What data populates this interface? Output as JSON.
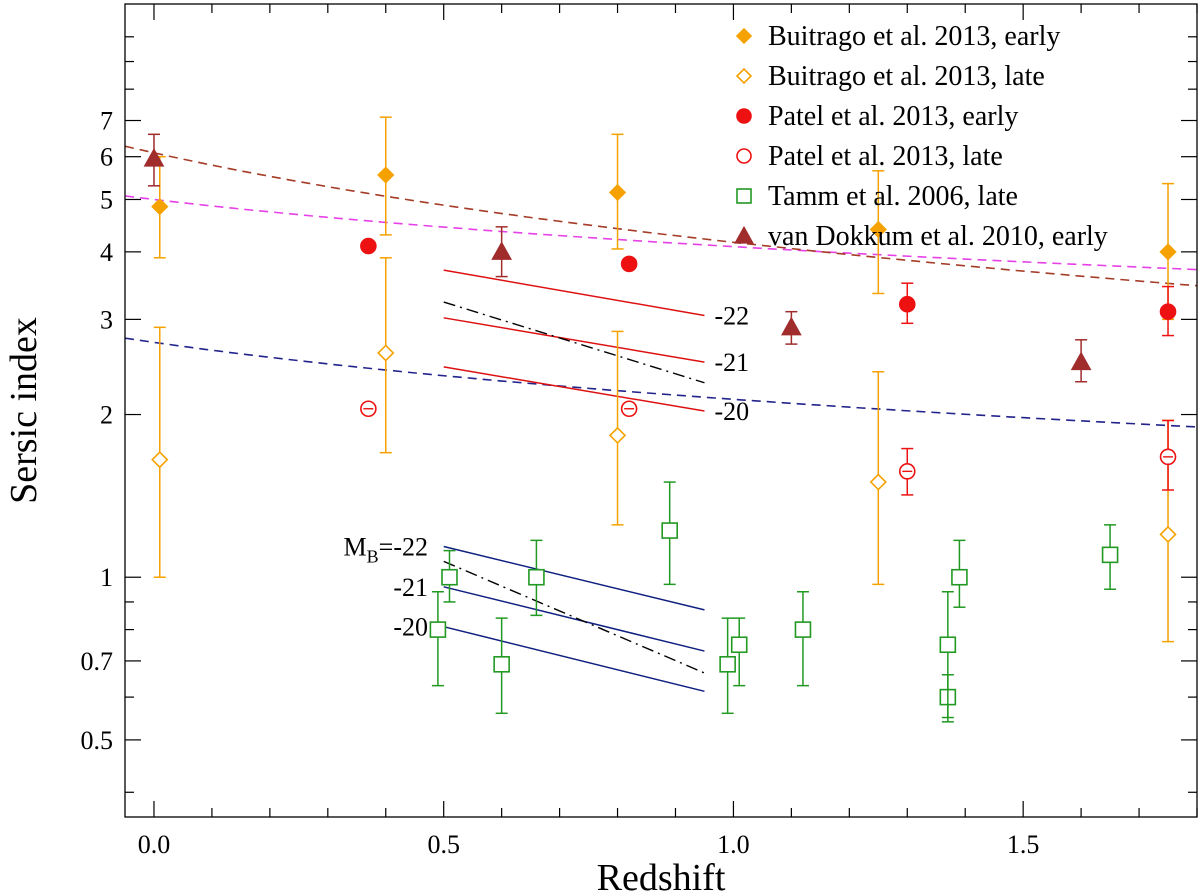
{
  "chart_data": {
    "type": "scatter",
    "title": "",
    "xlabel": "Redshift",
    "ylabel": "Sersic index",
    "xlim": [
      -0.05,
      1.8
    ],
    "ylim": [
      0.36,
      11.5
    ],
    "yscale": "log",
    "xticks": [
      {
        "v": 0.0,
        "label": "0.0"
      },
      {
        "v": 0.5,
        "label": "0.5"
      },
      {
        "v": 1.0,
        "label": "1.0"
      },
      {
        "v": 1.5,
        "label": "1.5"
      }
    ],
    "yticks": [
      {
        "v": 0.5,
        "label": "0.5"
      },
      {
        "v": 0.7,
        "label": "0.7"
      },
      {
        "v": 1,
        "label": "1"
      },
      {
        "v": 2,
        "label": "2"
      },
      {
        "v": 3,
        "label": "3"
      },
      {
        "v": 4,
        "label": "4"
      },
      {
        "v": 5,
        "label": "5"
      },
      {
        "v": 6,
        "label": "6"
      },
      {
        "v": 7,
        "label": "7"
      }
    ],
    "legend_position": "top-right",
    "series": [
      {
        "name": "Buitrago et al. 2013, early",
        "marker": "diamond",
        "filled": true,
        "color": "#f5a200",
        "points": [
          [
            0.01,
            4.85,
            3.9,
            6.0
          ],
          [
            0.4,
            5.55,
            4.3,
            7.1
          ],
          [
            0.8,
            5.15,
            4.05,
            6.6
          ],
          [
            1.25,
            4.4,
            3.35,
            5.65
          ],
          [
            1.75,
            4.0,
            3.0,
            5.35
          ]
        ]
      },
      {
        "name": "Buitrago et al. 2013, late",
        "marker": "diamond",
        "filled": false,
        "color": "#f5a200",
        "points": [
          [
            0.01,
            1.65,
            1.0,
            2.9
          ],
          [
            0.4,
            2.6,
            1.7,
            3.9
          ],
          [
            0.8,
            1.83,
            1.25,
            2.85
          ],
          [
            1.25,
            1.5,
            0.97,
            2.4
          ],
          [
            1.75,
            1.2,
            0.76,
            1.95
          ]
        ]
      },
      {
        "name": "Patel et al. 2013, early",
        "marker": "circle",
        "filled": true,
        "color": "#ee1111",
        "points": [
          [
            0.37,
            4.1,
            null,
            null
          ],
          [
            0.82,
            3.8,
            null,
            null
          ],
          [
            1.3,
            3.2,
            2.95,
            3.5
          ],
          [
            1.75,
            3.1,
            2.8,
            3.45
          ]
        ]
      },
      {
        "name": "Patel et al. 2013, late",
        "marker": "circle",
        "filled": false,
        "color": "#ee1111",
        "points": [
          [
            0.37,
            2.05,
            null,
            null
          ],
          [
            0.82,
            2.05,
            null,
            null
          ],
          [
            1.3,
            1.57,
            1.42,
            1.73
          ],
          [
            1.75,
            1.67,
            1.45,
            1.95
          ]
        ]
      },
      {
        "name": "Tamm et al. 2006, late",
        "marker": "square",
        "filled": false,
        "color": "#229922",
        "points": [
          [
            0.49,
            0.8,
            0.63,
            0.94
          ],
          [
            0.51,
            1.0,
            0.9,
            1.12
          ],
          [
            0.6,
            0.69,
            0.56,
            0.84
          ],
          [
            0.66,
            1.0,
            0.85,
            1.17
          ],
          [
            0.89,
            1.22,
            0.97,
            1.5
          ],
          [
            0.99,
            0.69,
            0.56,
            0.84
          ],
          [
            1.01,
            0.75,
            0.63,
            0.84
          ],
          [
            1.12,
            0.8,
            0.63,
            0.94
          ],
          [
            1.37,
            0.6,
            0.54,
            0.66
          ],
          [
            1.37,
            0.75,
            0.55,
            0.94
          ],
          [
            1.39,
            1.0,
            0.88,
            1.17
          ],
          [
            1.65,
            1.1,
            0.95,
            1.25
          ]
        ]
      },
      {
        "name": "van Dokkum et al. 2010, early",
        "marker": "triangle",
        "filled": true,
        "color": "#a02c2c",
        "points": [
          [
            0.0,
            5.95,
            5.3,
            6.6
          ],
          [
            0.6,
            4.0,
            3.6,
            4.45
          ],
          [
            1.1,
            2.9,
            2.7,
            3.1
          ],
          [
            1.6,
            2.5,
            2.3,
            2.75
          ]
        ]
      }
    ],
    "dashed_fits": [
      {
        "color": "#e641e6",
        "x": [
          -0.05,
          1.8
        ],
        "a": 5.0,
        "b": -0.29
      },
      {
        "color": "#a53c28",
        "x": [
          -0.05,
          1.8
        ],
        "a": 6.1,
        "b": -0.55
      },
      {
        "color": "#23238c",
        "x": [
          -0.05,
          1.8
        ],
        "a": 2.72,
        "b": -0.35
      }
    ],
    "upper_group": {
      "color": "#dd1111",
      "lines": [
        {
          "label": "-22",
          "start": 3.7,
          "end": 3.05
        },
        {
          "label": "-21",
          "start": 3.02,
          "end": 2.5
        },
        {
          "label": "-20",
          "start": 2.45,
          "end": 2.03
        }
      ],
      "dashdot": {
        "start": 3.23,
        "end": 2.29
      },
      "x_range": [
        0.5,
        0.95
      ]
    },
    "lower_group": {
      "color": "#102080",
      "prefix_label": "M",
      "prefix_sub": "B",
      "lines": [
        {
          "label": "=-22",
          "start": 1.14,
          "end": 0.87
        },
        {
          "label": "-21",
          "start": 0.96,
          "end": 0.73
        },
        {
          "label": "-20",
          "start": 0.81,
          "end": 0.615
        }
      ],
      "dashdot": {
        "start": 1.07,
        "end": 0.665
      },
      "x_range": [
        0.5,
        0.95
      ]
    }
  }
}
